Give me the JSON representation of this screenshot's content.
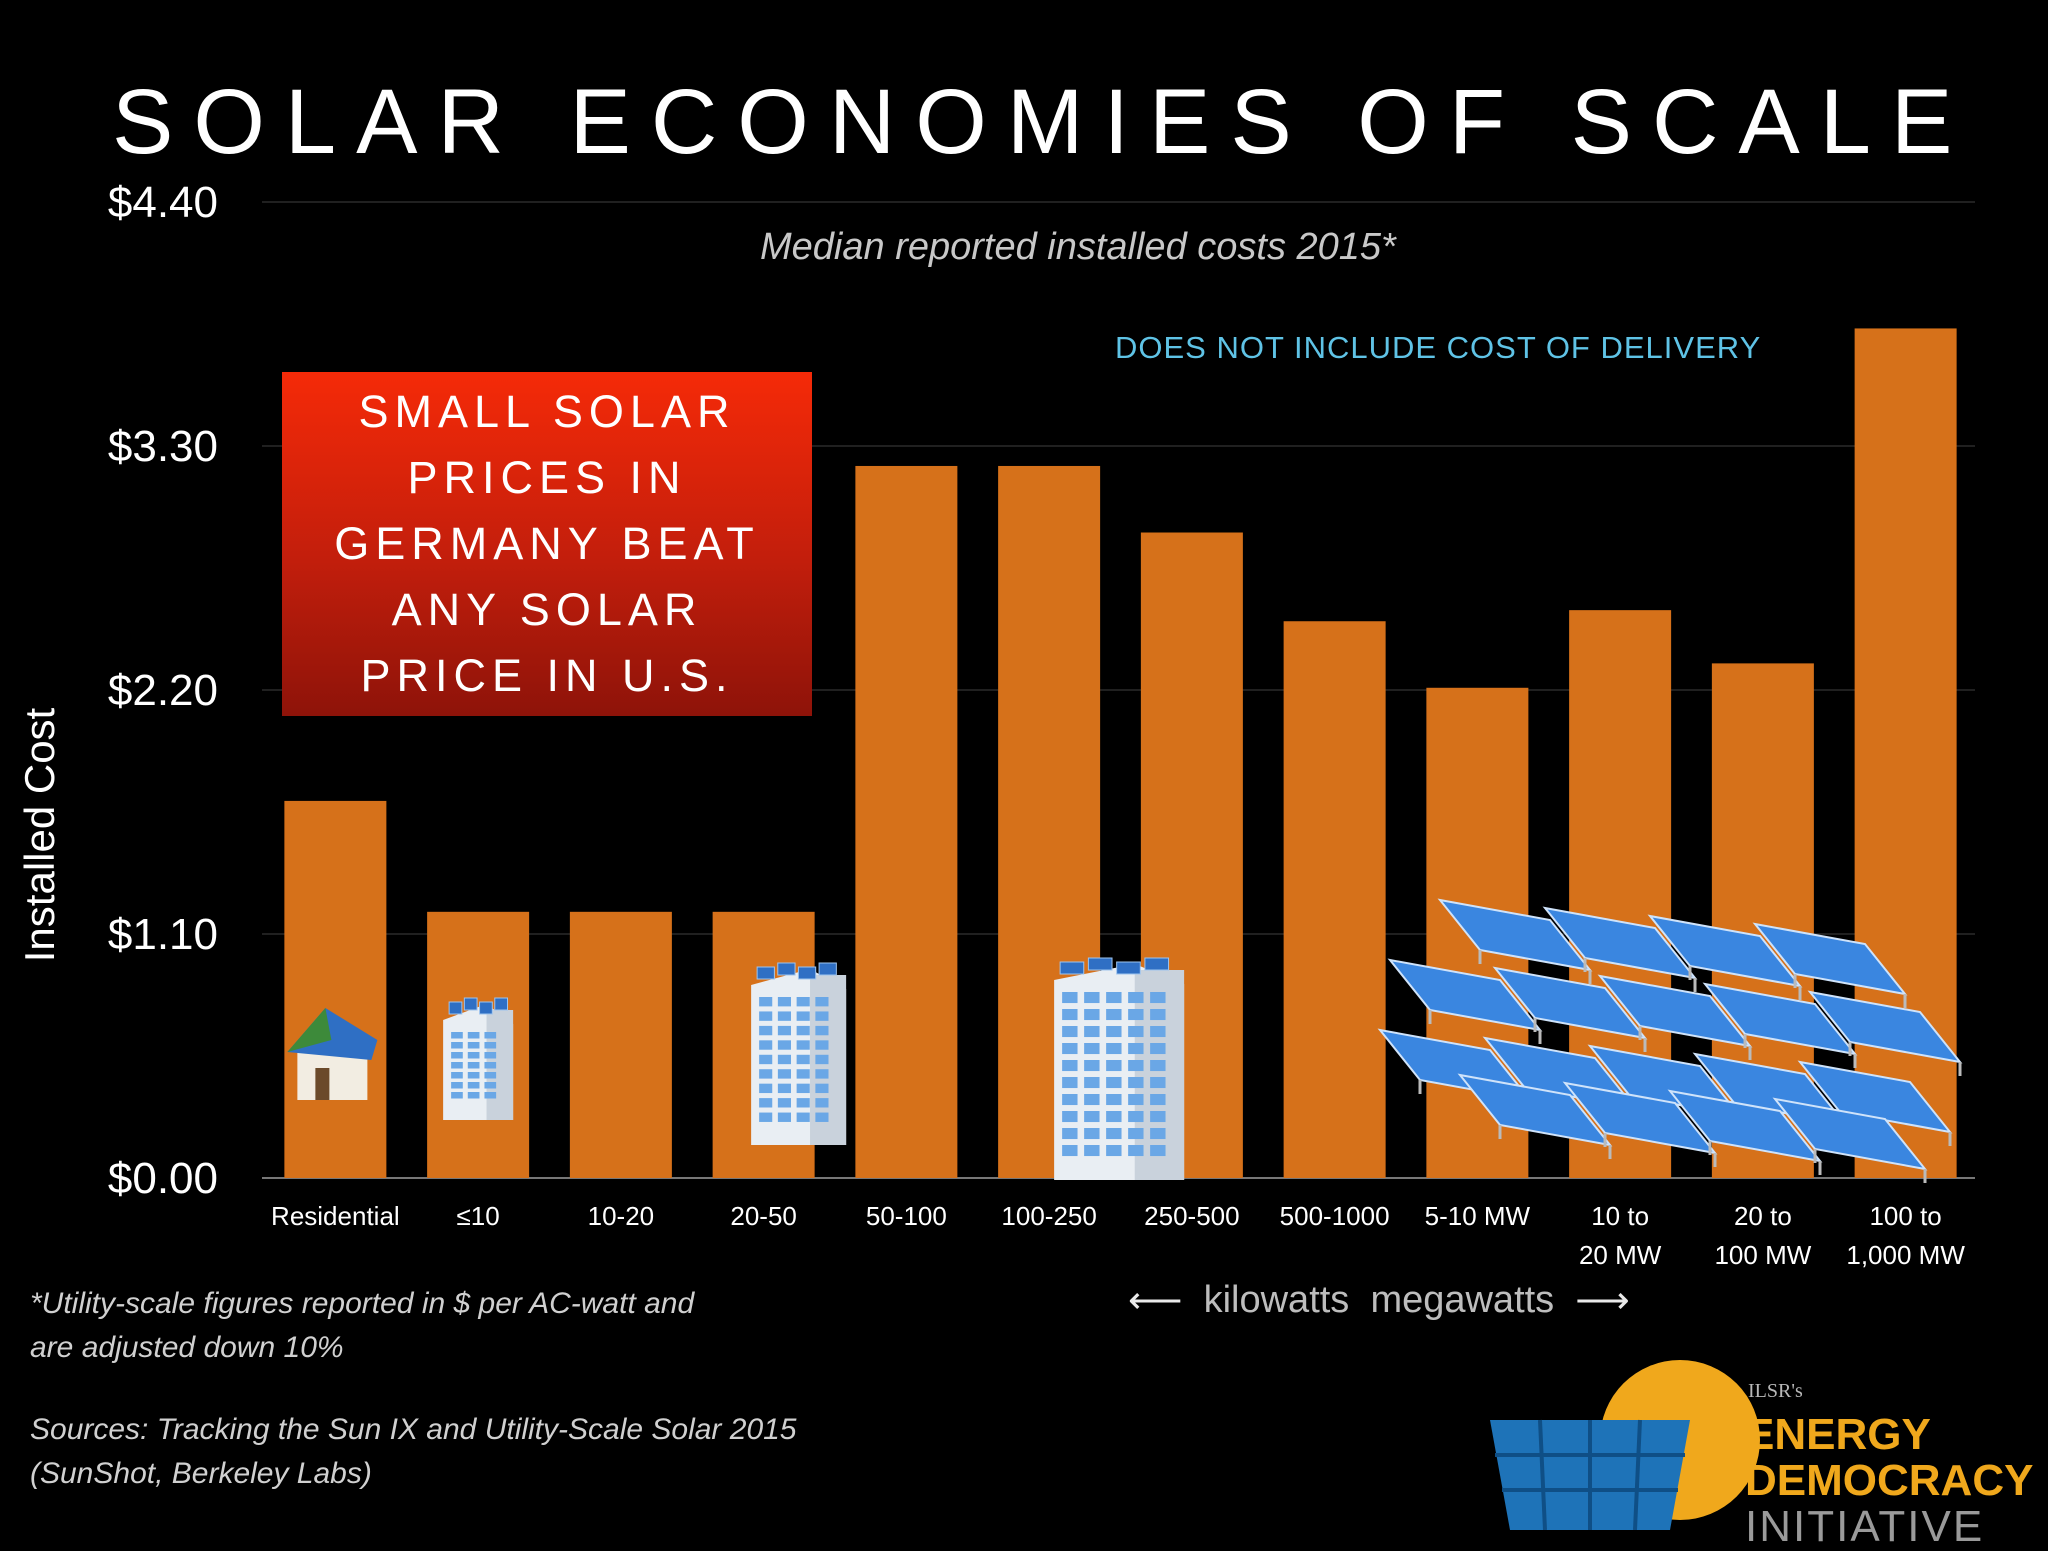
{
  "title": "SOLAR ECONOMIES OF SCALE",
  "subtitle": "Median reported installed costs 2015*",
  "note_delivery": "DOES NOT INCLUDE COST OF DELIVERY",
  "callout": "SMALL SOLAR\nPRICES IN\nGERMANY BEAT\nANY SOLAR\nPRICE IN U.S.",
  "footnote": "*Utility-scale figures reported in $ per AC-watt and\nare adjusted down 10%",
  "sources": "Sources: Tracking the Sun IX and Utility-Scale Solar 2015\n(SunShot, Berkeley Labs)",
  "units": {
    "left": "kilowatts",
    "right": "megawatts"
  },
  "logo": {
    "small": "ILSR's",
    "line1": "ENERGY",
    "line2": "DEMOCRACY",
    "line3": "INITIATIVE"
  },
  "colors": {
    "bar": "#d6711a",
    "background": "#000000",
    "callout": "#e2240a",
    "note": "#5fc3e6",
    "logo_accent": "#f0a81c"
  },
  "chart_data": {
    "type": "bar",
    "ylabel": "Installed Cost",
    "ylim": [
      0,
      4.4
    ],
    "yticks": [
      "$0.00",
      "$1.10",
      "$2.20",
      "$3.30",
      "$4.40"
    ],
    "ytick_values": [
      0,
      1.1,
      2.2,
      3.3,
      4.4
    ],
    "grid": true,
    "categories": [
      "Residential",
      "≤10",
      "10-20",
      "20-50",
      "50-100",
      "100-250",
      "250-500",
      "500-1000",
      "5-10 MW",
      "10 to\n20 MW",
      "20 to\n100 MW",
      "100 to\n1,000 MW"
    ],
    "values": [
      1.7,
      1.2,
      1.2,
      1.2,
      3.21,
      3.21,
      2.91,
      2.51,
      2.21,
      2.56,
      2.32,
      3.83
    ],
    "icons": [
      "house-icon",
      "small-building-icon",
      "",
      "medium-building-icon",
      "",
      "large-building-icon",
      "",
      "",
      "solar-panel-array-icon",
      "",
      "",
      ""
    ]
  }
}
